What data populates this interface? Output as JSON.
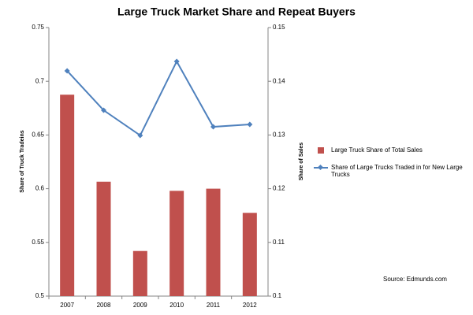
{
  "chart_data": {
    "type": "combo",
    "title": "Large Truck Market Share and Repeat Buyers",
    "categories": [
      "2007",
      "2008",
      "2009",
      "2010",
      "2011",
      "2012"
    ],
    "series": [
      {
        "name": "Large Truck Share of Total Sales",
        "type": "bar",
        "axis": "y2",
        "color": "#c0504d",
        "values": [
          0.1375,
          0.1213,
          0.1084,
          0.1196,
          0.12,
          0.1155
        ]
      },
      {
        "name": "Share of Large Trucks Traded in for New Large Trucks",
        "type": "line",
        "axis": "y",
        "color": "#4f81bd",
        "values": [
          0.7097,
          0.673,
          0.6496,
          0.7185,
          0.6576,
          0.6598
        ]
      }
    ],
    "ylabel": "Share of Truck Tradeins",
    "y2label": "Share of Sales",
    "ylim": [
      0.5,
      0.75
    ],
    "yticks": [
      0.5,
      0.55,
      0.6,
      0.65,
      0.7,
      0.75
    ],
    "y2lim": [
      0.1,
      0.15
    ],
    "y2ticks": [
      0.1,
      0.11,
      0.12,
      0.13,
      0.14,
      0.15
    ],
    "grid": false,
    "legend": "right",
    "annotations": [
      "Source: Edmunds.com"
    ]
  }
}
